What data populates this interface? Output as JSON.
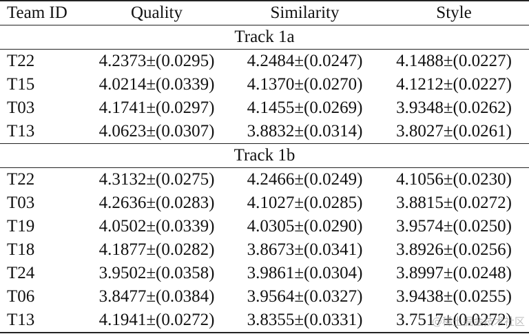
{
  "table": {
    "header": [
      "Team ID",
      "Quality",
      "Similarity",
      "Style"
    ],
    "sections": [
      {
        "title": "Track 1a",
        "rows": [
          [
            "T22",
            "4.2373±(0.0295)",
            "4.2484±(0.0247)",
            "4.1488±(0.0227)"
          ],
          [
            "T15",
            "4.0214±(0.0339)",
            "4.1370±(0.0270)",
            "4.1212±(0.0227)"
          ],
          [
            "T03",
            "4.1741±(0.0297)",
            "4.1455±(0.0269)",
            "3.9348±(0.0262)"
          ],
          [
            "T13",
            "4.0623±(0.0307)",
            "3.8832±(0.0314)",
            "3.8027±(0.0261)"
          ]
        ]
      },
      {
        "title": "Track 1b",
        "rows": [
          [
            "T22",
            "4.3132±(0.0275)",
            "4.2466±(0.0249)",
            "4.1056±(0.0230)"
          ],
          [
            "T03",
            "4.2636±(0.0283)",
            "4.1027±(0.0285)",
            "3.8815±(0.0272)"
          ],
          [
            "T19",
            "4.0502±(0.0339)",
            "4.0305±(0.0290)",
            "3.9574±(0.0250)"
          ],
          [
            "T18",
            "4.1877±(0.0282)",
            "3.8673±(0.0341)",
            "3.8926±(0.0256)"
          ],
          [
            "T24",
            "3.9502±(0.0358)",
            "3.9861±(0.0304)",
            "3.8997±(0.0248)"
          ],
          [
            "T06",
            "3.8477±(0.0384)",
            "3.9564±(0.0327)",
            "3.9438±(0.0255)"
          ],
          [
            "T13",
            "4.1941±(0.0272)",
            "3.8355±(0.0331)",
            "3.7517±(0.0272)"
          ]
        ]
      }
    ]
  },
  "watermark": "@稀土掘金技术社区"
}
